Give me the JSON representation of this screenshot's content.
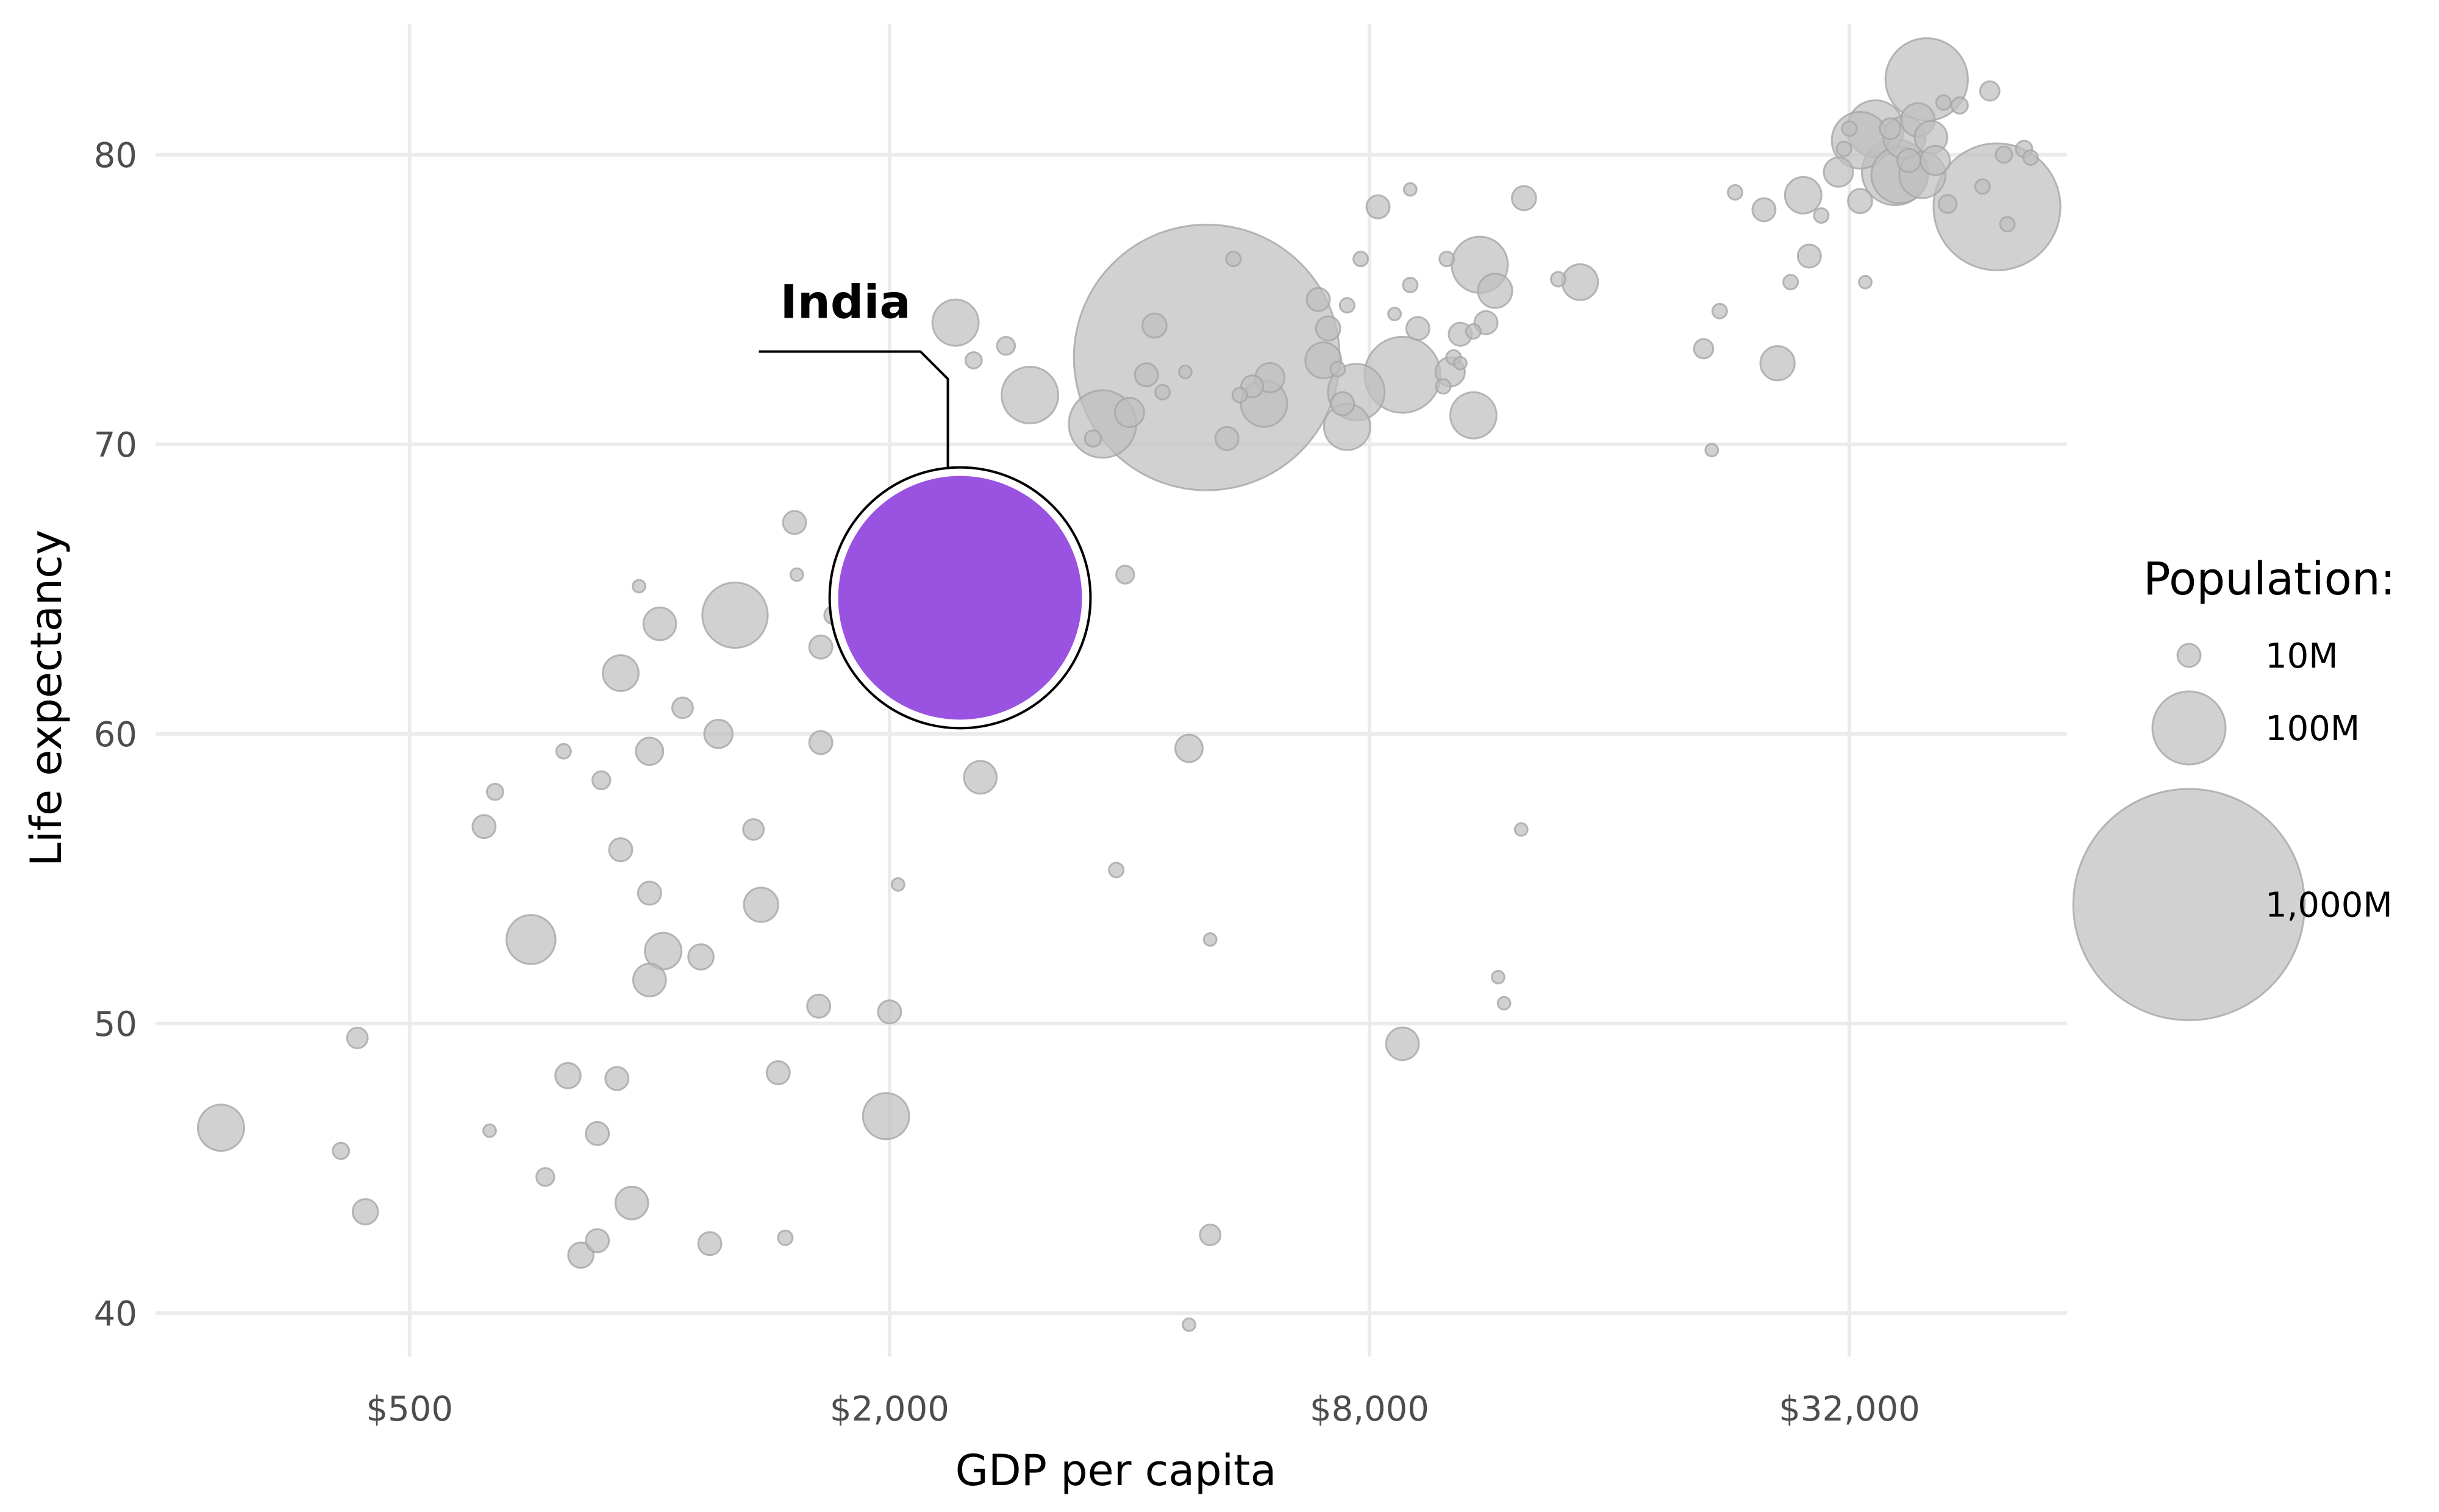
{
  "chart_data": {
    "type": "scatter",
    "xlabel": "GDP per capita",
    "ylabel": "Life expectancy",
    "x_scale": "log2",
    "xlim": [
      240,
      60000
    ],
    "ylim": [
      38.5,
      84.5
    ],
    "x_ticks": [
      500,
      2000,
      8000,
      32000
    ],
    "x_tick_labels": [
      "$500",
      "$2,000",
      "$8,000",
      "$32,000"
    ],
    "y_ticks": [
      40,
      50,
      60,
      70,
      80
    ],
    "y_tick_labels": [
      "40",
      "50",
      "60",
      "70",
      "80"
    ],
    "grid": true,
    "point_color": "#bfbfbf",
    "highlight_color": "#9a52e0",
    "highlight": {
      "label": "India",
      "x": 2452,
      "y": 64.7,
      "pop": 1110
    },
    "legend": {
      "title": "Population:",
      "placement": "right",
      "items": [
        {
          "label": "10M",
          "pop": 10
        },
        {
          "label": "100M",
          "pop": 100
        },
        {
          "label": "1,000M",
          "pop": 1000
        }
      ]
    },
    "points": [
      {
        "x": 40000,
        "y": 82.6,
        "pop": 127
      },
      {
        "x": 48000,
        "y": 82.2,
        "pop": 7
      },
      {
        "x": 44000,
        "y": 81.7,
        "pop": 5
      },
      {
        "x": 42000,
        "y": 81.8,
        "pop": 4
      },
      {
        "x": 39000,
        "y": 81.2,
        "pop": 21
      },
      {
        "x": 36000,
        "y": 80.9,
        "pop": 8
      },
      {
        "x": 34500,
        "y": 80.9,
        "pop": 60
      },
      {
        "x": 37500,
        "y": 80.6,
        "pop": 33
      },
      {
        "x": 33000,
        "y": 80.5,
        "pop": 60
      },
      {
        "x": 31500,
        "y": 80.2,
        "pop": 4
      },
      {
        "x": 40500,
        "y": 80.6,
        "pop": 20
      },
      {
        "x": 32000,
        "y": 80.9,
        "pop": 4
      },
      {
        "x": 38000,
        "y": 79.8,
        "pop": 10
      },
      {
        "x": 41000,
        "y": 79.8,
        "pop": 16
      },
      {
        "x": 36500,
        "y": 79.4,
        "pop": 82
      },
      {
        "x": 37000,
        "y": 79.3,
        "pop": 60
      },
      {
        "x": 39500,
        "y": 79.3,
        "pop": 40
      },
      {
        "x": 53000,
        "y": 80.2,
        "pop": 5
      },
      {
        "x": 50000,
        "y": 80.0,
        "pop": 5
      },
      {
        "x": 54000,
        "y": 79.9,
        "pop": 4
      },
      {
        "x": 31000,
        "y": 79.4,
        "pop": 16
      },
      {
        "x": 28000,
        "y": 78.6,
        "pop": 25
      },
      {
        "x": 33000,
        "y": 78.4,
        "pop": 11
      },
      {
        "x": 42500,
        "y": 78.3,
        "pop": 6
      },
      {
        "x": 47000,
        "y": 78.9,
        "pop": 4
      },
      {
        "x": 49000,
        "y": 78.2,
        "pop": 301
      },
      {
        "x": 50500,
        "y": 77.6,
        "pop": 4
      },
      {
        "x": 25000,
        "y": 78.1,
        "pop": 10
      },
      {
        "x": 23000,
        "y": 78.7,
        "pop": 4
      },
      {
        "x": 29500,
        "y": 77.9,
        "pop": 4
      },
      {
        "x": 28500,
        "y": 76.5,
        "pop": 10
      },
      {
        "x": 27000,
        "y": 75.6,
        "pop": 4
      },
      {
        "x": 33500,
        "y": 75.6,
        "pop": 3
      },
      {
        "x": 26000,
        "y": 72.8,
        "pop": 22
      },
      {
        "x": 22000,
        "y": 74.6,
        "pop": 4
      },
      {
        "x": 21000,
        "y": 73.3,
        "pop": 7
      },
      {
        "x": 21500,
        "y": 69.8,
        "pop": 3
      },
      {
        "x": 12500,
        "y": 78.5,
        "pop": 11
      },
      {
        "x": 9000,
        "y": 78.8,
        "pop": 3
      },
      {
        "x": 8200,
        "y": 78.2,
        "pop": 10
      },
      {
        "x": 11000,
        "y": 76.2,
        "pop": 59
      },
      {
        "x": 10000,
        "y": 76.4,
        "pop": 4
      },
      {
        "x": 11500,
        "y": 75.3,
        "pop": 22
      },
      {
        "x": 13800,
        "y": 75.7,
        "pop": 4
      },
      {
        "x": 14700,
        "y": 75.6,
        "pop": 24
      },
      {
        "x": 9000,
        "y": 75.5,
        "pop": 4
      },
      {
        "x": 9200,
        "y": 74.0,
        "pop": 10
      },
      {
        "x": 10800,
        "y": 73.9,
        "pop": 4
      },
      {
        "x": 10400,
        "y": 73.8,
        "pop": 10
      },
      {
        "x": 11200,
        "y": 74.2,
        "pop": 10
      },
      {
        "x": 8600,
        "y": 74.5,
        "pop": 3
      },
      {
        "x": 10200,
        "y": 73.0,
        "pop": 4
      },
      {
        "x": 10100,
        "y": 72.5,
        "pop": 16
      },
      {
        "x": 10400,
        "y": 72.8,
        "pop": 3
      },
      {
        "x": 9900,
        "y": 72.0,
        "pop": 4
      },
      {
        "x": 8800,
        "y": 72.4,
        "pop": 108
      },
      {
        "x": 7700,
        "y": 71.8,
        "pop": 60
      },
      {
        "x": 10800,
        "y": 71.0,
        "pop": 40
      },
      {
        "x": 7000,
        "y": 72.9,
        "pop": 24
      },
      {
        "x": 7100,
        "y": 74.0,
        "pop": 11
      },
      {
        "x": 6900,
        "y": 75.0,
        "pop": 10
      },
      {
        "x": 7500,
        "y": 74.8,
        "pop": 4
      },
      {
        "x": 7300,
        "y": 72.6,
        "pop": 4
      },
      {
        "x": 7800,
        "y": 76.4,
        "pop": 4
      },
      {
        "x": 7400,
        "y": 71.4,
        "pop": 10
      },
      {
        "x": 7500,
        "y": 70.6,
        "pop": 40
      },
      {
        "x": 5400,
        "y": 76.4,
        "pop": 4
      },
      {
        "x": 5000,
        "y": 73.0,
        "pop": 1319
      },
      {
        "x": 4700,
        "y": 72.5,
        "pop": 3
      },
      {
        "x": 5500,
        "y": 71.7,
        "pop": 4
      },
      {
        "x": 5700,
        "y": 72.0,
        "pop": 9
      },
      {
        "x": 6000,
        "y": 72.3,
        "pop": 16
      },
      {
        "x": 5900,
        "y": 71.4,
        "pop": 40
      },
      {
        "x": 4200,
        "y": 72.4,
        "pop": 10
      },
      {
        "x": 4400,
        "y": 71.8,
        "pop": 4
      },
      {
        "x": 4300,
        "y": 74.1,
        "pop": 11
      },
      {
        "x": 4000,
        "y": 71.1,
        "pop": 16
      },
      {
        "x": 3700,
        "y": 70.7,
        "pop": 85
      },
      {
        "x": 3600,
        "y": 70.2,
        "pop": 5
      },
      {
        "x": 5300,
        "y": 70.2,
        "pop": 10
      },
      {
        "x": 3000,
        "y": 71.7,
        "pop": 60
      },
      {
        "x": 2800,
        "y": 73.4,
        "pop": 6
      },
      {
        "x": 2550,
        "y": 72.9,
        "pop": 5
      },
      {
        "x": 2420,
        "y": 74.2,
        "pop": 40
      },
      {
        "x": 3100,
        "y": 66.8,
        "pop": 4
      },
      {
        "x": 3950,
        "y": 65.5,
        "pop": 6
      },
      {
        "x": 2300,
        "y": 62.7,
        "pop": 10
      },
      {
        "x": 2600,
        "y": 58.5,
        "pop": 20
      },
      {
        "x": 4750,
        "y": 59.5,
        "pop": 14
      },
      {
        "x": 3850,
        "y": 55.3,
        "pop": 4
      },
      {
        "x": 5050,
        "y": 52.9,
        "pop": 3
      },
      {
        "x": 2050,
        "y": 54.8,
        "pop": 3
      },
      {
        "x": 2000,
        "y": 50.4,
        "pop": 10
      },
      {
        "x": 1980,
        "y": 46.8,
        "pop": 40
      },
      {
        "x": 5050,
        "y": 42.7,
        "pop": 8
      },
      {
        "x": 4750,
        "y": 39.6,
        "pop": 3
      },
      {
        "x": 12400,
        "y": 56.7,
        "pop": 3
      },
      {
        "x": 11600,
        "y": 51.6,
        "pop": 3
      },
      {
        "x": 11800,
        "y": 50.7,
        "pop": 3
      },
      {
        "x": 8800,
        "y": 49.3,
        "pop": 20
      },
      {
        "x": 1520,
        "y": 67.3,
        "pop": 10
      },
      {
        "x": 1530,
        "y": 65.5,
        "pop": 3
      },
      {
        "x": 1700,
        "y": 64.1,
        "pop": 6
      },
      {
        "x": 1640,
        "y": 63.0,
        "pop": 10
      },
      {
        "x": 1640,
        "y": 59.7,
        "pop": 10
      },
      {
        "x": 1630,
        "y": 50.6,
        "pop": 10
      },
      {
        "x": 1450,
        "y": 48.3,
        "pop": 10
      },
      {
        "x": 1480,
        "y": 42.6,
        "pop": 4
      },
      {
        "x": 1280,
        "y": 64.1,
        "pop": 80
      },
      {
        "x": 1220,
        "y": 60.0,
        "pop": 15
      },
      {
        "x": 1350,
        "y": 56.7,
        "pop": 8
      },
      {
        "x": 1380,
        "y": 54.1,
        "pop": 22
      },
      {
        "x": 1100,
        "y": 60.9,
        "pop": 8
      },
      {
        "x": 1160,
        "y": 52.3,
        "pop": 12
      },
      {
        "x": 1190,
        "y": 42.4,
        "pop": 10
      },
      {
        "x": 970,
        "y": 65.1,
        "pop": 3
      },
      {
        "x": 1030,
        "y": 63.8,
        "pop": 20
      },
      {
        "x": 920,
        "y": 62.1,
        "pop": 24
      },
      {
        "x": 1000,
        "y": 59.4,
        "pop": 14
      },
      {
        "x": 1000,
        "y": 54.5,
        "pop": 10
      },
      {
        "x": 1040,
        "y": 52.5,
        "pop": 25
      },
      {
        "x": 1000,
        "y": 51.5,
        "pop": 20
      },
      {
        "x": 920,
        "y": 56.0,
        "pop": 10
      },
      {
        "x": 870,
        "y": 58.4,
        "pop": 6
      },
      {
        "x": 780,
        "y": 59.4,
        "pop": 4
      },
      {
        "x": 860,
        "y": 46.2,
        "pop": 10
      },
      {
        "x": 910,
        "y": 48.1,
        "pop": 10
      },
      {
        "x": 950,
        "y": 43.8,
        "pop": 20
      },
      {
        "x": 860,
        "y": 42.5,
        "pop": 10
      },
      {
        "x": 820,
        "y": 42.0,
        "pop": 12
      },
      {
        "x": 790,
        "y": 48.2,
        "pop": 12
      },
      {
        "x": 740,
        "y": 44.7,
        "pop": 6
      },
      {
        "x": 640,
        "y": 58.0,
        "pop": 5
      },
      {
        "x": 620,
        "y": 56.8,
        "pop": 10
      },
      {
        "x": 710,
        "y": 52.9,
        "pop": 45
      },
      {
        "x": 630,
        "y": 46.3,
        "pop": 3
      },
      {
        "x": 430,
        "y": 49.5,
        "pop": 8
      },
      {
        "x": 410,
        "y": 45.6,
        "pop": 5
      },
      {
        "x": 440,
        "y": 43.5,
        "pop": 12
      },
      {
        "x": 290,
        "y": 46.4,
        "pop": 40
      }
    ]
  }
}
